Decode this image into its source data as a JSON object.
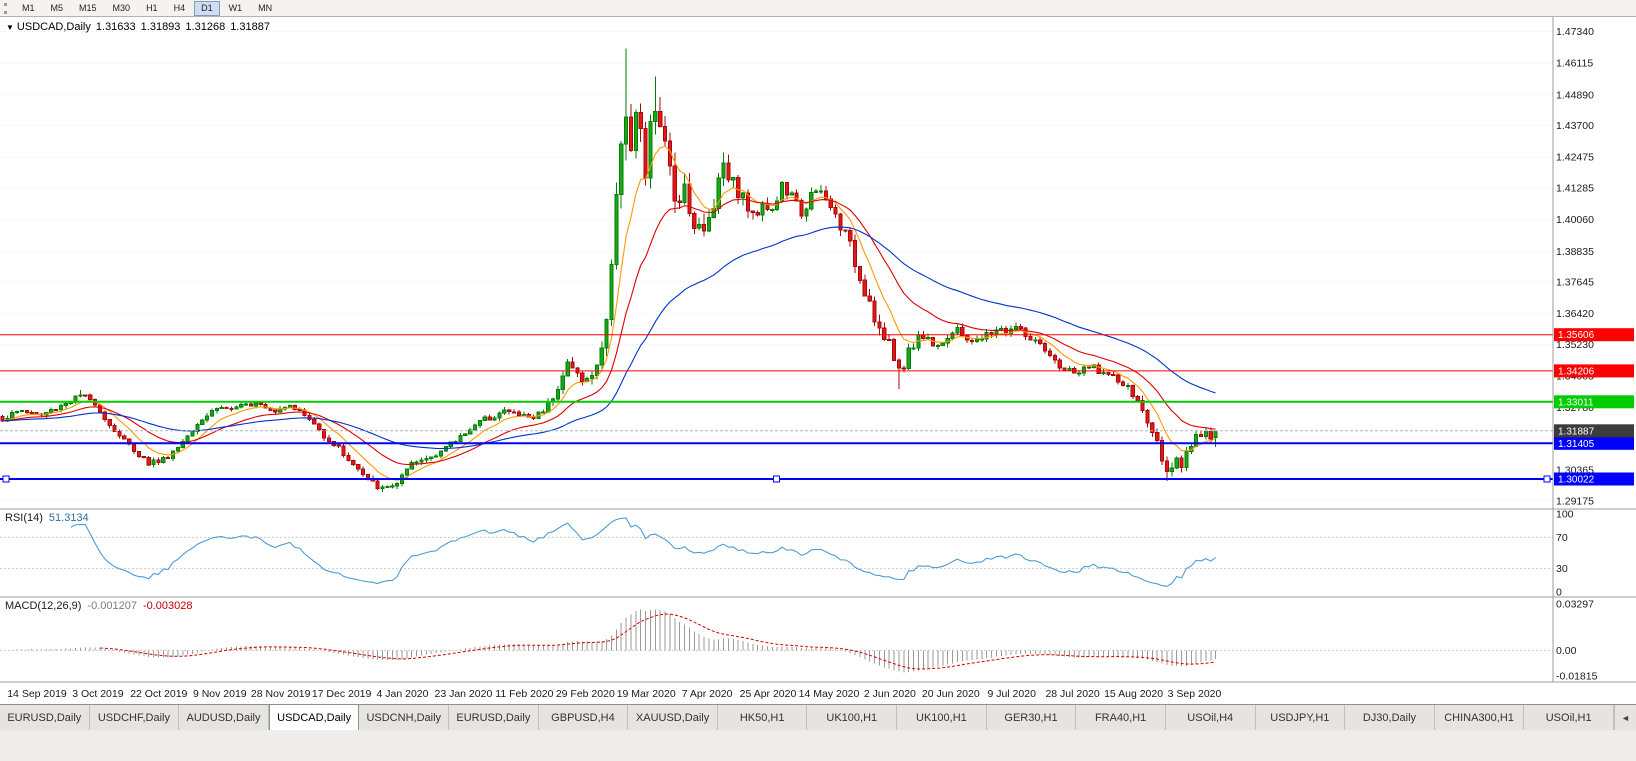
{
  "toolbar": {
    "timeframes": [
      {
        "label": "M1"
      },
      {
        "label": "M5"
      },
      {
        "label": "M15"
      },
      {
        "label": "M30"
      },
      {
        "label": "H1"
      },
      {
        "label": "H4"
      },
      {
        "label": "D1"
      },
      {
        "label": "W1"
      },
      {
        "label": "MN"
      }
    ],
    "active": "D1"
  },
  "chart_header": {
    "collapse_icon": "▼",
    "symbol": "USDCAD,Daily",
    "open": "1.31633",
    "high": "1.31893",
    "low": "1.31268",
    "close": "1.31887"
  },
  "indicators": {
    "rsi": {
      "label": "RSI(14)",
      "value": "51.3134"
    },
    "macd": {
      "label": "MACD(12,26,9)",
      "value_main": "-0.001207",
      "value_signal": "-0.003028"
    }
  },
  "chart_data": {
    "type": "candlestick",
    "symbol": "USDCAD",
    "timeframe": "Daily",
    "candle_count": 250,
    "seed": 1337,
    "last_bar": {
      "open": 1.31633,
      "high": 1.31893,
      "low": 1.31268,
      "close": 1.31887
    },
    "price_view": {
      "high": 1.479,
      "low": 1.289
    },
    "price_axis_ticks": [
      "1.47340",
      "1.46115",
      "1.44890",
      "1.43700",
      "1.42475",
      "1.41285",
      "1.40060",
      "1.38835",
      "1.37645",
      "1.36420",
      "1.35230",
      "1.34005",
      "1.32780",
      "1.31590",
      "1.30365",
      "1.29175"
    ],
    "date_labels": [
      "14 Sep 2019",
      "3 Oct 2019",
      "22 Oct 2019",
      "9 Nov 2019",
      "28 Nov 2019",
      "17 Dec 2019",
      "4 Jan 2020",
      "23 Jan 2020",
      "11 Feb 2020",
      "29 Feb 2020",
      "19 Mar 2020",
      "7 Apr 2020",
      "25 Apr 2020",
      "14 May 2020",
      "2 Jun 2020",
      "20 Jun 2020",
      "9 Jul 2020",
      "28 Jul 2020",
      "15 Aug 2020",
      "3 Sep 2020"
    ],
    "close_anchors": [
      [
        0,
        1.3235
      ],
      [
        4,
        1.3268
      ],
      [
        8,
        1.3248
      ],
      [
        12,
        1.3288
      ],
      [
        16,
        1.3325
      ],
      [
        19,
        1.3298
      ],
      [
        22,
        1.321
      ],
      [
        26,
        1.3132
      ],
      [
        30,
        1.3065
      ],
      [
        33,
        1.3078
      ],
      [
        36,
        1.3125
      ],
      [
        40,
        1.3222
      ],
      [
        44,
        1.328
      ],
      [
        48,
        1.3272
      ],
      [
        52,
        1.3305
      ],
      [
        56,
        1.3268
      ],
      [
        59,
        1.3295
      ],
      [
        63,
        1.3232
      ],
      [
        66,
        1.3172
      ],
      [
        69,
        1.3122
      ],
      [
        72,
        1.3058
      ],
      [
        75,
        1.2998
      ],
      [
        78,
        1.2962
      ],
      [
        81,
        1.2988
      ],
      [
        84,
        1.3055
      ],
      [
        88,
        1.3092
      ],
      [
        92,
        1.3135
      ],
      [
        96,
        1.32
      ],
      [
        100,
        1.3242
      ],
      [
        103,
        1.3266
      ],
      [
        106,
        1.3252
      ],
      [
        109,
        1.3238
      ],
      [
        112,
        1.3292
      ],
      [
        114,
        1.3362
      ],
      [
        116,
        1.3448
      ],
      [
        118,
        1.3408
      ],
      [
        120,
        1.3382
      ],
      [
        122,
        1.3428
      ],
      [
        124,
        1.3628
      ],
      [
        126,
        1.4052
      ],
      [
        127,
        1.4352
      ],
      [
        128,
        1.4442
      ],
      [
        129,
        1.4282
      ],
      [
        130,
        1.4392
      ],
      [
        131,
        1.4302
      ],
      [
        132,
        1.4182
      ],
      [
        133,
        1.4338
      ],
      [
        134,
        1.4442
      ],
      [
        135,
        1.4382
      ],
      [
        136,
        1.4262
      ],
      [
        138,
        1.4092
      ],
      [
        140,
        1.4142
      ],
      [
        142,
        1.3992
      ],
      [
        144,
        1.3948
      ],
      [
        146,
        1.4082
      ],
      [
        148,
        1.4238
      ],
      [
        150,
        1.4148
      ],
      [
        152,
        1.4092
      ],
      [
        154,
        1.4012
      ],
      [
        156,
        1.4082
      ],
      [
        158,
        1.4038
      ],
      [
        160,
        1.4132
      ],
      [
        162,
        1.4092
      ],
      [
        164,
        1.4032
      ],
      [
        166,
        1.4098
      ],
      [
        168,
        1.4108
      ],
      [
        170,
        1.4052
      ],
      [
        172,
        1.3988
      ],
      [
        174,
        1.3902
      ],
      [
        176,
        1.3782
      ],
      [
        178,
        1.3692
      ],
      [
        180,
        1.3578
      ],
      [
        182,
        1.3512
      ],
      [
        184,
        1.3428
      ],
      [
        186,
        1.3488
      ],
      [
        188,
        1.3562
      ],
      [
        190,
        1.3542
      ],
      [
        192,
        1.3528
      ],
      [
        194,
        1.3552
      ],
      [
        196,
        1.3572
      ],
      [
        198,
        1.3548
      ],
      [
        200,
        1.3532
      ],
      [
        202,
        1.3558
      ],
      [
        204,
        1.3582
      ],
      [
        206,
        1.3572
      ],
      [
        208,
        1.3592
      ],
      [
        210,
        1.3558
      ],
      [
        212,
        1.3532
      ],
      [
        214,
        1.3492
      ],
      [
        216,
        1.3452
      ],
      [
        218,
        1.3428
      ],
      [
        220,
        1.3412
      ],
      [
        222,
        1.3422
      ],
      [
        224,
        1.3438
      ],
      [
        226,
        1.3412
      ],
      [
        228,
        1.3392
      ],
      [
        230,
        1.3368
      ],
      [
        232,
        1.3332
      ],
      [
        234,
        1.3262
      ],
      [
        236,
        1.3182
      ],
      [
        238,
        1.3092
      ],
      [
        239,
        1.3048
      ],
      [
        240,
        1.3028
      ],
      [
        241,
        1.3062
      ],
      [
        242,
        1.3042
      ],
      [
        243,
        1.3092
      ],
      [
        244,
        1.3132
      ],
      [
        245,
        1.3158
      ],
      [
        246,
        1.3178
      ],
      [
        247,
        1.3192
      ],
      [
        248,
        1.3168
      ],
      [
        249,
        1.31887
      ]
    ],
    "volatility_anchors": [
      [
        0,
        0.0022
      ],
      [
        108,
        0.0022
      ],
      [
        114,
        0.0034
      ],
      [
        122,
        0.005
      ],
      [
        126,
        0.012
      ],
      [
        130,
        0.0135
      ],
      [
        136,
        0.011
      ],
      [
        142,
        0.0085
      ],
      [
        150,
        0.0062
      ],
      [
        158,
        0.0048
      ],
      [
        168,
        0.0042
      ],
      [
        176,
        0.005
      ],
      [
        184,
        0.0058
      ],
      [
        188,
        0.0042
      ],
      [
        198,
        0.003
      ],
      [
        212,
        0.0028
      ],
      [
        230,
        0.0028
      ],
      [
        238,
        0.0042
      ],
      [
        243,
        0.0036
      ],
      [
        249,
        0.0024
      ]
    ],
    "wick_overrides": [
      {
        "i": 16,
        "high": 1.3347
      },
      {
        "i": 78,
        "low": 1.2952
      },
      {
        "i": 116,
        "high": 1.3464
      },
      {
        "i": 128,
        "high": 1.4668
      },
      {
        "i": 134,
        "high": 1.456
      },
      {
        "i": 148,
        "high": 1.4265
      },
      {
        "i": 184,
        "low": 1.335
      },
      {
        "i": 239,
        "low": 1.2994
      }
    ],
    "up_color": "#17a917",
    "up_border": "#067d06",
    "down_color": "#e81717",
    "down_border": "#a50b0b",
    "moving_averages": [
      {
        "period": 8,
        "color": "#ff9900"
      },
      {
        "period": 20,
        "color": "#dd0000"
      },
      {
        "period": 50,
        "color": "#0033cc"
      }
    ],
    "h_lines": [
      {
        "value": 1.35606,
        "label": "1.35606",
        "color": "#ff0000",
        "width": 1
      },
      {
        "value": 1.34206,
        "label": "1.34206",
        "color": "#ff0000",
        "width": 1
      },
      {
        "value": 1.33011,
        "label": "1.33011",
        "color": "#00cc00",
        "width": 2
      },
      {
        "value": 1.31405,
        "label": "1.31405",
        "color": "#0000ff",
        "width": 2
      },
      {
        "value": 1.30022,
        "label": "1.30022",
        "color": "#0000ff",
        "width": 2,
        "selected": true
      }
    ],
    "current_price": {
      "value": 1.31887,
      "label": "1.31887",
      "label_bg": "#3c3c3c"
    },
    "rsi": {
      "period": 14,
      "color": "#4f9bd5",
      "axis_labels": [
        100,
        70,
        30,
        0
      ],
      "levels_dashed": [
        70,
        30
      ]
    },
    "macd": {
      "fast": 12,
      "slow": 26,
      "signal": 9,
      "histogram_color": "#9a9a9a",
      "signal_color": "#d00000",
      "axis_max": 0.03297,
      "axis_min": -0.01815,
      "axis_labels": [
        "0.03297",
        "0.00",
        "-0.01815"
      ]
    }
  },
  "tabs": {
    "active_index": 3,
    "scroll_icon": "◄",
    "items": [
      {
        "label": "EURUSD,Daily"
      },
      {
        "label": "USDCHF,Daily"
      },
      {
        "label": "AUDUSD,Daily"
      },
      {
        "label": "USDCAD,Daily"
      },
      {
        "label": "USDCNH,Daily"
      },
      {
        "label": "EURUSD,Daily"
      },
      {
        "label": "GBPUSD,H4"
      },
      {
        "label": "XAUUSD,Daily"
      },
      {
        "label": "HK50,H1"
      },
      {
        "label": "UK100,H1"
      },
      {
        "label": "UK100,H1"
      },
      {
        "label": "GER30,H1"
      },
      {
        "label": "FRA40,H1"
      },
      {
        "label": "USOil,H4"
      },
      {
        "label": "USDJPY,H1"
      },
      {
        "label": "DJ30,Daily"
      },
      {
        "label": "CHINA300,H1"
      },
      {
        "label": "USOil,H1"
      }
    ]
  }
}
